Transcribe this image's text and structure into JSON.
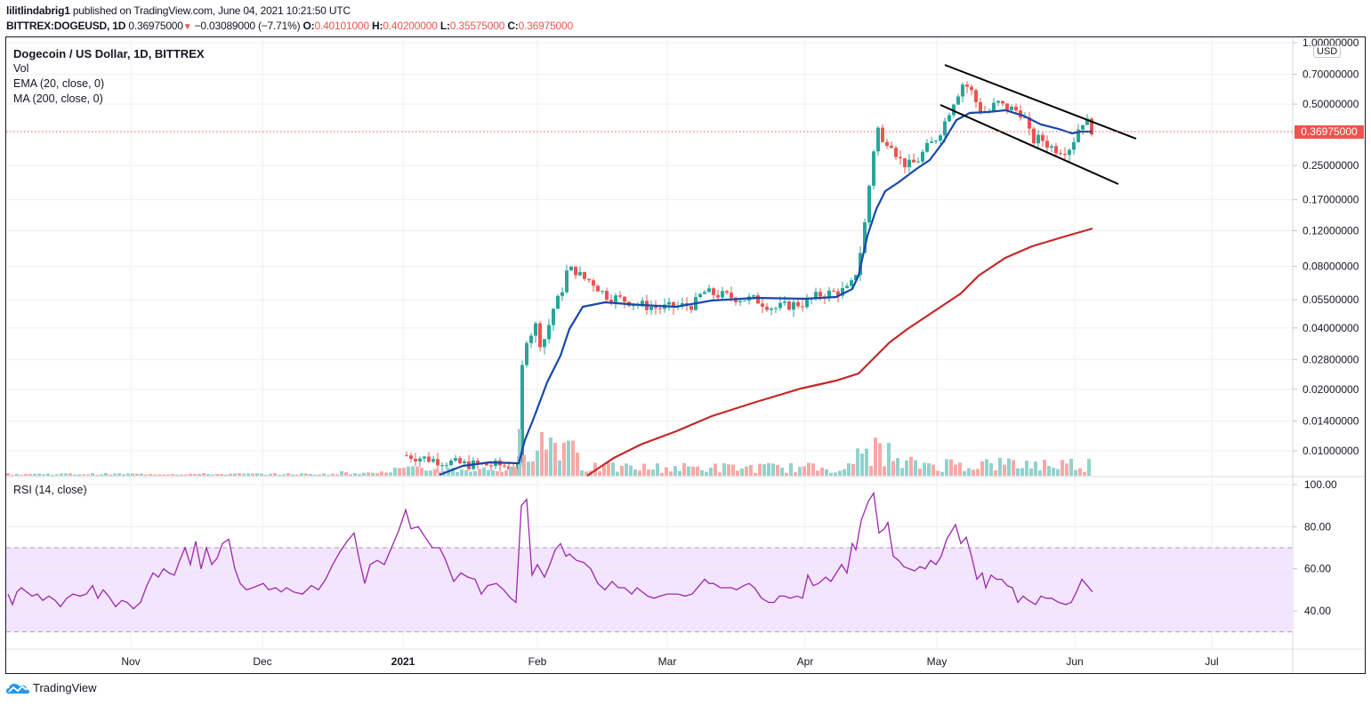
{
  "header": {
    "publisher": "lilitlindabrig1",
    "published_text": " published on TradingView.com, June 04, 2021 10:21:50 UTC",
    "symbol": "BITTREX:DOGEUSD, 1D",
    "last": "0.36975000",
    "change": "−0.03089000 (−7.71%)",
    "o_label": "O:",
    "o": "0.40101000",
    "h_label": "H:",
    "h": "0.40200000",
    "l_label": "L:",
    "l": "0.35575000",
    "c_label": "C:",
    "c": "0.36975000"
  },
  "legend": {
    "title": "Dogecoin / US Dollar, 1D, BITTREX",
    "vol": "Vol",
    "ema": "EMA (20, close, 0)",
    "ma": "MA (200, close, 0)",
    "rsi": "RSI (14, close)"
  },
  "price_axis": {
    "currency": "USD",
    "current_price_tag": "0.36975000",
    "ticks": [
      {
        "label": "1.00000000",
        "value": 1.0
      },
      {
        "label": "0.70000000",
        "value": 0.7
      },
      {
        "label": "0.50000000",
        "value": 0.5
      },
      {
        "label": "0.25000000",
        "value": 0.25
      },
      {
        "label": "0.17000000",
        "value": 0.17
      },
      {
        "label": "0.12000000",
        "value": 0.12
      },
      {
        "label": "0.08000000",
        "value": 0.08
      },
      {
        "label": "0.05500000",
        "value": 0.055
      },
      {
        "label": "0.04000000",
        "value": 0.04
      },
      {
        "label": "0.02800000",
        "value": 0.028
      },
      {
        "label": "0.02000000",
        "value": 0.02
      },
      {
        "label": "0.01400000",
        "value": 0.014
      },
      {
        "label": "0.01000000",
        "value": 0.01
      }
    ]
  },
  "rsi_axis": {
    "ticks": [
      {
        "label": "100.00",
        "value": 100
      },
      {
        "label": "80.00",
        "value": 80
      },
      {
        "label": "60.00",
        "value": 60
      },
      {
        "label": "40.00",
        "value": 40
      }
    ],
    "band": [
      30,
      70
    ]
  },
  "time_axis": {
    "ticks": [
      {
        "label": "Nov",
        "x": 147
      },
      {
        "label": "Dec",
        "x": 295
      },
      {
        "label": "2021",
        "x": 453,
        "bold": true
      },
      {
        "label": "Feb",
        "x": 604
      },
      {
        "label": "Mar",
        "x": 750
      },
      {
        "label": "Apr",
        "x": 905
      },
      {
        "label": "May",
        "x": 1053
      },
      {
        "label": "Jun",
        "x": 1208
      },
      {
        "label": "Jul",
        "x": 1362
      }
    ]
  },
  "colors": {
    "up": "#26a69a",
    "down": "#ef5350",
    "vol_up": "#92d2cc",
    "vol_down": "#f7a9a7",
    "ema": "#1848a8",
    "ma": "#c62828",
    "rsi_line": "#9c27b0",
    "rsi_band": "#f3e5fd",
    "grid": "#eeeff2",
    "trendline": "#000000",
    "last_price": "#ef5350"
  },
  "chart_data": {
    "type": "candlestick",
    "title": "Dogecoin / US Dollar, 1D, BITTREX",
    "xlabel": "",
    "ylabel": "USD (log scale)",
    "ylim": [
      0.0085,
      1.05
    ],
    "last_close": 0.36975,
    "ohlc_last": {
      "open": 0.40101,
      "high": 0.402,
      "low": 0.35575,
      "close": 0.36975,
      "change": -0.03089,
      "change_pct": -7.71
    },
    "key_levels": {
      "pre_2021_flat": 0.0026,
      "jan_2021_range": [
        0.0075,
        0.0115
      ],
      "late_jan_spike_high": 0.075,
      "feb_peak": 0.085,
      "mar_range": [
        0.048,
        0.062
      ],
      "apr_peak": 0.44,
      "may_8_ath": 0.72,
      "may_low_wick": 0.21,
      "jun_4_close": 0.36975
    },
    "close_series_approx": {
      "dates": [
        "2021-01-01",
        "2021-01-10",
        "2021-01-20",
        "2021-01-28",
        "2021-01-30",
        "2021-02-05",
        "2021-02-08",
        "2021-02-15",
        "2021-03-01",
        "2021-03-15",
        "2021-04-01",
        "2021-04-10",
        "2021-04-16",
        "2021-04-20",
        "2021-04-25",
        "2021-05-01",
        "2021-05-05",
        "2021-05-08",
        "2021-05-12",
        "2021-05-19",
        "2021-05-25",
        "2021-05-31",
        "2021-06-02",
        "2021-06-04"
      ],
      "values": [
        0.0097,
        0.0095,
        0.0087,
        0.037,
        0.05,
        0.046,
        0.078,
        0.058,
        0.052,
        0.057,
        0.056,
        0.075,
        0.38,
        0.32,
        0.26,
        0.39,
        0.58,
        0.6,
        0.48,
        0.36,
        0.33,
        0.32,
        0.41,
        0.37
      ]
    },
    "series": [
      {
        "name": "EMA (20, close, 0)",
        "approx_values": {
          "2021-01-15": 0.0082,
          "2021-02-01": 0.019,
          "2021-02-15": 0.052,
          "2021-03-15": 0.053,
          "2021-04-10": 0.058,
          "2021-04-20": 0.18,
          "2021-05-01": 0.32,
          "2021-05-10": 0.46,
          "2021-05-20": 0.47,
          "2021-06-04": 0.38
        }
      },
      {
        "name": "MA (200, close, 0)",
        "approx_values": {
          "2021-02-15": 0.0085,
          "2021-03-01": 0.012,
          "2021-04-01": 0.021,
          "2021-04-15": 0.025,
          "2021-05-01": 0.04,
          "2021-06-04": 0.125
        }
      },
      {
        "name": "RSI (14, close)",
        "approx_values": {
          "2020-10-05": 48,
          "2020-11-01": 40,
          "2020-11-20": 70,
          "2020-12-20": 76,
          "2021-01-02": 89,
          "2021-01-28": 45,
          "2021-01-29": 93,
          "2021-02-08": 79,
          "2021-03-15": 48,
          "2021-04-15": 96,
          "2021-04-20": 77,
          "2021-05-07": 81,
          "2021-05-19": 50,
          "2021-06-02": 55,
          "2021-06-04": 49
        }
      },
      {
        "name": "Vol",
        "note": "relative heights; spikes late Jan 2021 and mid-Apr 2021"
      }
    ],
    "trendlines": [
      {
        "name": "channel-upper",
        "from": {
          "x": 1062,
          "y": 73
        },
        "to": {
          "x": 1277,
          "y": 156
        }
      },
      {
        "name": "channel-lower",
        "from": {
          "x": 1057,
          "y": 118
        },
        "to": {
          "x": 1257,
          "y": 207
        }
      }
    ]
  },
  "branding": {
    "logo_text": "TradingView"
  }
}
